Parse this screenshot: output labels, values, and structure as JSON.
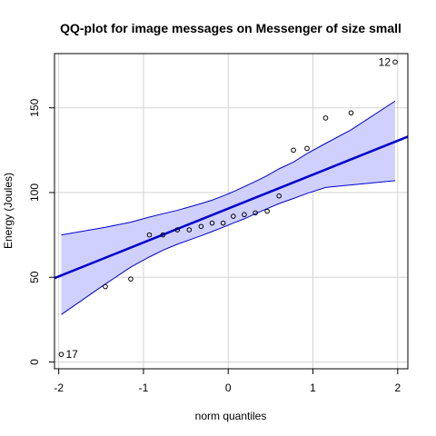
{
  "chart_data": {
    "type": "scatter",
    "title": "QQ-plot for image messages on Messenger of size small",
    "xlabel": "norm quantiles",
    "ylabel": "Energy (Joules)",
    "xlim": [
      -2.05,
      2.12
    ],
    "ylim": [
      -4,
      182
    ],
    "x_ticks": [
      -2,
      -1,
      0,
      1,
      2
    ],
    "y_ticks": [
      0,
      50,
      100,
      150
    ],
    "x_tick_labels": [
      "-2",
      "-1",
      "0",
      "1",
      "2"
    ],
    "y_tick_labels": [
      "0",
      "50",
      "100",
      "150"
    ],
    "grid": true,
    "points": [
      {
        "x": -1.97,
        "y": 4.5
      },
      {
        "x": -1.45,
        "y": 44.5
      },
      {
        "x": -1.15,
        "y": 49
      },
      {
        "x": -0.93,
        "y": 75
      },
      {
        "x": -0.77,
        "y": 75
      },
      {
        "x": -0.6,
        "y": 78
      },
      {
        "x": -0.46,
        "y": 78
      },
      {
        "x": -0.32,
        "y": 80
      },
      {
        "x": -0.19,
        "y": 82
      },
      {
        "x": -0.06,
        "y": 82
      },
      {
        "x": 0.06,
        "y": 86
      },
      {
        "x": 0.19,
        "y": 87
      },
      {
        "x": 0.32,
        "y": 88
      },
      {
        "x": 0.46,
        "y": 89
      },
      {
        "x": 0.6,
        "y": 98
      },
      {
        "x": 0.77,
        "y": 125
      },
      {
        "x": 0.93,
        "y": 126
      },
      {
        "x": 1.15,
        "y": 144
      },
      {
        "x": 1.45,
        "y": 147
      },
      {
        "x": 1.97,
        "y": 177
      }
    ],
    "point_labels": [
      {
        "x": -1.97,
        "y": 4.5,
        "text": "17",
        "side": "right"
      },
      {
        "x": 1.97,
        "y": 177,
        "text": "12",
        "side": "left"
      }
    ],
    "fit_line": {
      "x": [
        -2.05,
        2.12
      ],
      "y": [
        49.5,
        133
      ]
    },
    "band_upper": {
      "x": [
        -1.97,
        -1.45,
        -1.15,
        -0.93,
        -0.77,
        -0.6,
        -0.46,
        -0.32,
        -0.19,
        -0.06,
        0.06,
        0.19,
        0.32,
        0.46,
        0.6,
        0.77,
        0.93,
        1.15,
        1.45,
        1.97
      ],
      "y": [
        75,
        79.5,
        82.5,
        85.5,
        87.5,
        89.5,
        91.5,
        93.5,
        95.5,
        98,
        100.5,
        103.5,
        106.5,
        110,
        114,
        118,
        123,
        129,
        137,
        154
      ]
    },
    "band_lower": {
      "x": [
        -1.97,
        -1.45,
        -1.15,
        -0.93,
        -0.77,
        -0.6,
        -0.46,
        -0.32,
        -0.19,
        -0.06,
        0.06,
        0.19,
        0.32,
        0.46,
        0.6,
        0.77,
        0.93,
        1.15,
        1.45,
        1.97
      ],
      "y": [
        28,
        46,
        56,
        62,
        66,
        69.5,
        72,
        74.5,
        77,
        79.5,
        82,
        84.5,
        87.5,
        90.5,
        93.5,
        96.5,
        99.5,
        103,
        104.5,
        107
      ]
    },
    "colors": {
      "band_fill": "#d0d0ff",
      "band_stroke": "#0000cc",
      "fit_line": "#0000cc",
      "grid": "#d3d3d3",
      "points": "#000000",
      "axes": "#000000"
    }
  }
}
